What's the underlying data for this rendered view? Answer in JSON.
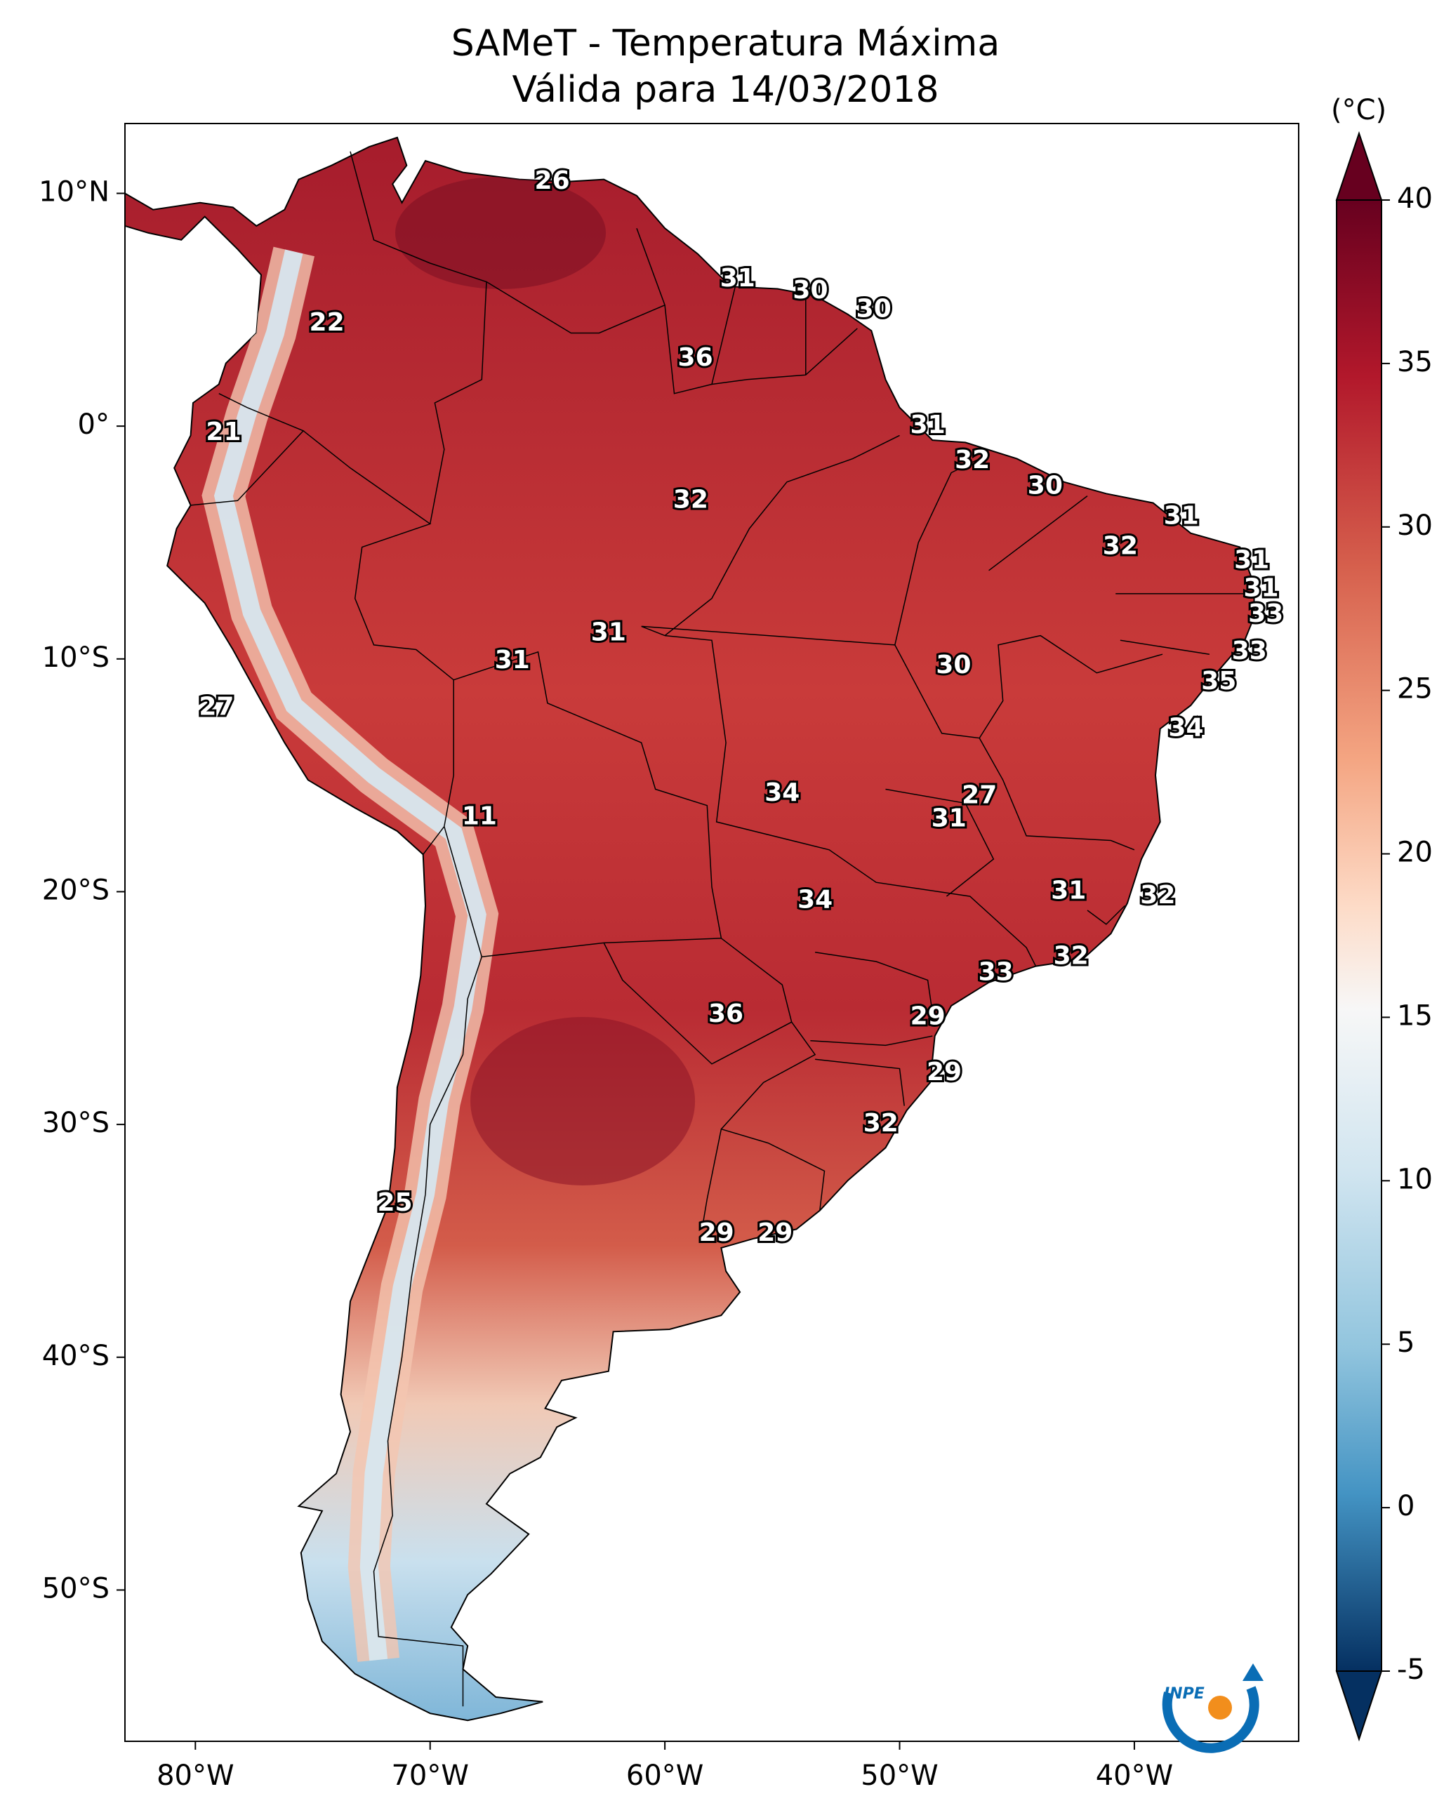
{
  "title": {
    "line1": "SAMeT - Temperatura Máxima",
    "line2": "Válida para 14/03/2018"
  },
  "colorbar": {
    "unit": "(°C)",
    "ticks": [
      "40",
      "35",
      "30",
      "25",
      "20",
      "15",
      "10",
      "5",
      "0",
      "-5"
    ],
    "min": -5,
    "max": 40,
    "colors": {
      "high": "#67001f",
      "warm": "#d6604d",
      "mid": "#f7f7f7",
      "cool": "#92c5de",
      "low": "#053061"
    }
  },
  "axes": {
    "lon_ticks": [
      "80°W",
      "70°W",
      "60°W",
      "50°W",
      "40°W"
    ],
    "lat_ticks": [
      "10°N",
      "0°",
      "10°S",
      "20°S",
      "30°S",
      "40°S",
      "50°S"
    ]
  },
  "map": {
    "lon_range": [
      -83,
      -33
    ],
    "lat_range": [
      -56.5,
      13
    ],
    "colors": {
      "ocean": "#ffffff",
      "border": "#000000"
    }
  },
  "logo": {
    "text": "INPE",
    "colors": [
      "#0a6db5",
      "#f28e1c"
    ]
  },
  "value_labels": [
    {
      "value": "26",
      "lon": -64.8,
      "lat": 10.5
    },
    {
      "value": "22",
      "lon": -74.4,
      "lat": 4.4
    },
    {
      "value": "31",
      "lon": -56.9,
      "lat": 6.3
    },
    {
      "value": "30",
      "lon": -53.8,
      "lat": 5.8
    },
    {
      "value": "30",
      "lon": -51.1,
      "lat": 5.0
    },
    {
      "value": "36",
      "lon": -58.7,
      "lat": 2.9
    },
    {
      "value": "21",
      "lon": -78.8,
      "lat": -0.3
    },
    {
      "value": "31",
      "lon": -48.8,
      "lat": 0.0
    },
    {
      "value": "32",
      "lon": -46.9,
      "lat": -1.5
    },
    {
      "value": "32",
      "lon": -58.9,
      "lat": -3.2
    },
    {
      "value": "30",
      "lon": -43.8,
      "lat": -2.6
    },
    {
      "value": "31",
      "lon": -38.0,
      "lat": -3.9
    },
    {
      "value": "32",
      "lon": -40.6,
      "lat": -5.2
    },
    {
      "value": "31",
      "lon": -35.0,
      "lat": -5.8
    },
    {
      "value": "31",
      "lon": -34.6,
      "lat": -7.0
    },
    {
      "value": "33",
      "lon": -34.4,
      "lat": -8.1
    },
    {
      "value": "31",
      "lon": -62.4,
      "lat": -8.9
    },
    {
      "value": "31",
      "lon": -66.5,
      "lat": -10.1
    },
    {
      "value": "30",
      "lon": -47.7,
      "lat": -10.3
    },
    {
      "value": "33",
      "lon": -35.1,
      "lat": -9.7
    },
    {
      "value": "35",
      "lon": -36.4,
      "lat": -11.0
    },
    {
      "value": "27",
      "lon": -79.1,
      "lat": -12.1
    },
    {
      "value": "34",
      "lon": -37.8,
      "lat": -13.0
    },
    {
      "value": "34",
      "lon": -55.0,
      "lat": -15.8
    },
    {
      "value": "27",
      "lon": -46.6,
      "lat": -15.9
    },
    {
      "value": "31",
      "lon": -47.9,
      "lat": -16.9
    },
    {
      "value": "11",
      "lon": -67.9,
      "lat": -16.8
    },
    {
      "value": "31",
      "lon": -42.8,
      "lat": -20.0
    },
    {
      "value": "32",
      "lon": -39.0,
      "lat": -20.2
    },
    {
      "value": "34",
      "lon": -53.6,
      "lat": -20.4
    },
    {
      "value": "32",
      "lon": -42.7,
      "lat": -22.8
    },
    {
      "value": "33",
      "lon": -45.9,
      "lat": -23.5
    },
    {
      "value": "36",
      "lon": -57.4,
      "lat": -25.3
    },
    {
      "value": "29",
      "lon": -48.8,
      "lat": -25.4
    },
    {
      "value": "29",
      "lon": -48.1,
      "lat": -27.8
    },
    {
      "value": "32",
      "lon": -50.8,
      "lat": -30.0
    },
    {
      "value": "25",
      "lon": -71.5,
      "lat": -33.4
    },
    {
      "value": "29",
      "lon": -57.8,
      "lat": -34.7
    },
    {
      "value": "29",
      "lon": -55.3,
      "lat": -34.7
    }
  ]
}
